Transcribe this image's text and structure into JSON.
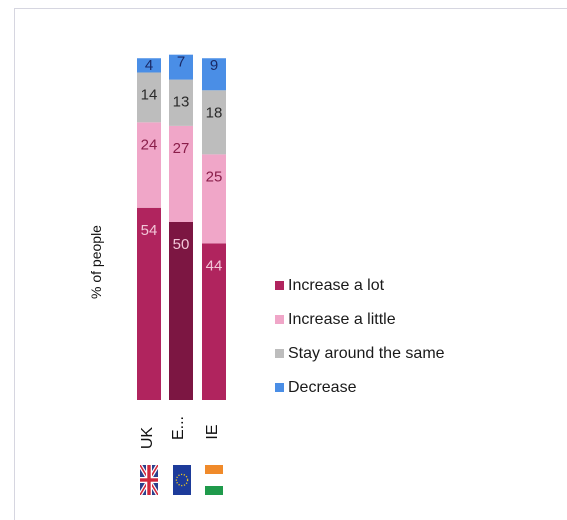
{
  "chart_data": {
    "type": "bar",
    "stacked": true,
    "orientation": "vertical",
    "categories": [
      "UK",
      "E...",
      "IE"
    ],
    "series": [
      {
        "name": "Increase a lot",
        "values": [
          54,
          50,
          44
        ],
        "color": "#b0245e",
        "colors": [
          "#b0245e",
          "#7c1642",
          "#b0245e"
        ],
        "label_color": "#f2c6d8"
      },
      {
        "name": "Increase a little",
        "values": [
          24,
          27,
          25
        ],
        "color": "#f0a6c8",
        "label_color": "#8a1e4a"
      },
      {
        "name": "Stay around the same",
        "values": [
          14,
          13,
          18
        ],
        "color": "#bdbdbd",
        "label_color": "#2a2a2a"
      },
      {
        "name": "Decrease",
        "values": [
          4,
          7,
          9
        ],
        "color": "#4a8ee6",
        "label_color": "#1a2a66"
      }
    ],
    "ylabel": "% of people",
    "ylim": [
      0,
      100
    ],
    "grid": false,
    "legend_position": "right",
    "flags": [
      {
        "category": "UK",
        "icon": "uk-flag-icon"
      },
      {
        "category": "E...",
        "icon": "eu-flag-icon"
      },
      {
        "category": "IE",
        "icon": "ireland-flag-icon"
      }
    ]
  }
}
